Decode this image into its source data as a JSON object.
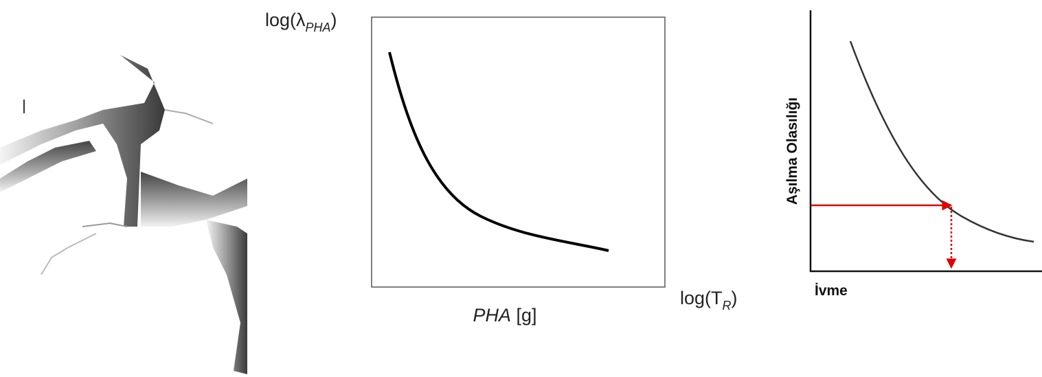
{
  "hazard_curve": {
    "y_label": {
      "prefix": "log(λ",
      "subscript": "PHA",
      "suffix": ")"
    },
    "x_label": {
      "italic": "PHA",
      "rest": "[g]"
    },
    "side_label": {
      "prefix": "log(T",
      "subscript": "R",
      "suffix": ")"
    }
  },
  "exceedance_curve": {
    "y_label": "Aşılma Olasılığı",
    "x_label": "İvme"
  }
}
